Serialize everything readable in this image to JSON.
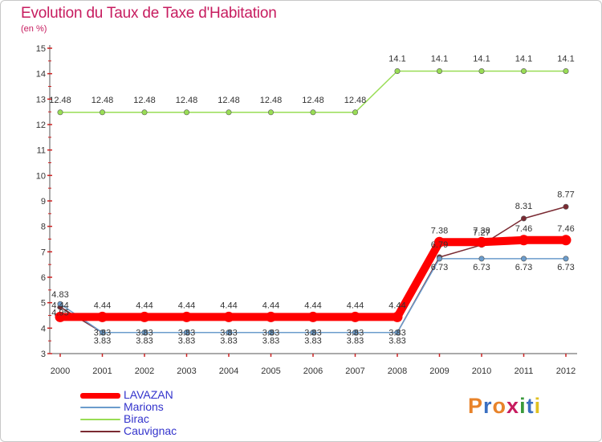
{
  "header": {
    "title": "Evolution du Taux de Taxe d'Habitation",
    "subtitle": "(en %)"
  },
  "logo": {
    "text": "Proxiti",
    "colors": [
      "#e8832a",
      "#3a6fc1",
      "#e8832a",
      "#c71c5f",
      "#3a9a3c",
      "#3a6fc1",
      "#e0c020"
    ]
  },
  "chart_data": {
    "type": "line",
    "title": "Evolution du Taux de Taxe d'Habitation",
    "subtitle": "(en %)",
    "x": [
      "2000",
      "2001",
      "2002",
      "2003",
      "2004",
      "2005",
      "2006",
      "2007",
      "2008",
      "2009",
      "2010",
      "2011",
      "2012"
    ],
    "ylim": [
      3,
      15
    ],
    "yticks": [
      3,
      4,
      5,
      6,
      7,
      8,
      9,
      10,
      11,
      12,
      13,
      14,
      15
    ],
    "grid": false,
    "legend_position": "bottom-left",
    "series": [
      {
        "name": "LAVAZAN",
        "color": "#ff0000",
        "values": [
          4.44,
          4.44,
          4.44,
          4.44,
          4.44,
          4.44,
          4.44,
          4.44,
          4.44,
          7.38,
          7.38,
          7.46,
          7.46
        ],
        "labels": [
          "4.44",
          "4.44",
          "4.44",
          "4.44",
          "4.44",
          "4.44",
          "4.44",
          "4.44",
          "4.44",
          "7.38",
          "7.38",
          "7.46",
          "7.46"
        ]
      },
      {
        "name": "Marions",
        "color": "#6b9ccc",
        "values": [
          4.95,
          3.83,
          3.83,
          3.83,
          3.83,
          3.83,
          3.83,
          3.83,
          3.83,
          6.73,
          6.73,
          6.73,
          6.73
        ],
        "labels": [
          "4.95",
          "3.83",
          "3.83",
          "3.83",
          "3.83",
          "3.83",
          "3.83",
          "3.83",
          "3.83",
          "6.73",
          "6.73",
          "6.73",
          "6.73"
        ]
      },
      {
        "name": "Birac",
        "color": "#99dd55",
        "values": [
          12.48,
          12.48,
          12.48,
          12.48,
          12.48,
          12.48,
          12.48,
          12.48,
          14.1,
          14.1,
          14.1,
          14.1,
          14.1
        ],
        "labels": [
          "12.48",
          "12.48",
          "12.48",
          "12.48",
          "12.48",
          "12.48",
          "12.48",
          "12.48",
          "14.1",
          "14.1",
          "14.1",
          "14.1",
          "14.1"
        ]
      },
      {
        "name": "Cauvignac",
        "color": "#7a2a32",
        "values": [
          4.83,
          3.83,
          3.83,
          3.83,
          3.83,
          3.83,
          3.83,
          3.83,
          3.83,
          6.79,
          7.27,
          8.31,
          8.77
        ],
        "labels": [
          "4.83",
          "3.83",
          "3.83",
          "3.83",
          "3.83",
          "3.83",
          "3.83",
          "3.83",
          "3.83",
          "6.79",
          "7.27",
          "8.31",
          "8.77"
        ]
      }
    ]
  }
}
